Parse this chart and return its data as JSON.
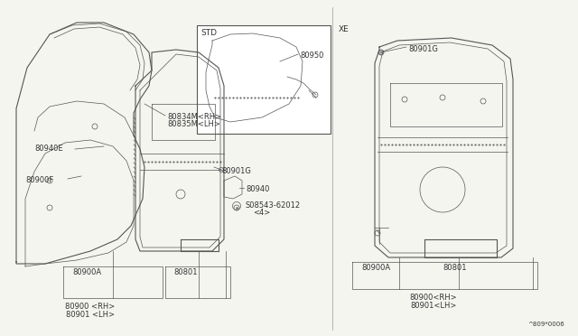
{
  "bg_color": "#f5f5f0",
  "line_color": "#555555",
  "dark_color": "#333333",
  "diagram_code": "^809*0006",
  "std_label": "STD",
  "xe_label": "XE",
  "fs": 6.0,
  "labels": {
    "80834M_RH": "80834M<RH>",
    "80835M_LH": "80835M<LH>",
    "80940E": "80940E",
    "80900F": "80900F",
    "80901G_left": "80901G",
    "80940": "80940",
    "08543": "S08543-62012",
    "4": "<4>",
    "80900A_left": "80900A",
    "80801_left": "80801",
    "80900_RH_left": "80900 <RH>",
    "80901_LH_left": "80901 <LH>",
    "80950": "80950",
    "80901G_right": "80901G",
    "80900A_right": "80900A",
    "80801_right": "80801",
    "80900_RH_right": "80900<RH>",
    "80901_LH_right": "80901<LH>"
  }
}
